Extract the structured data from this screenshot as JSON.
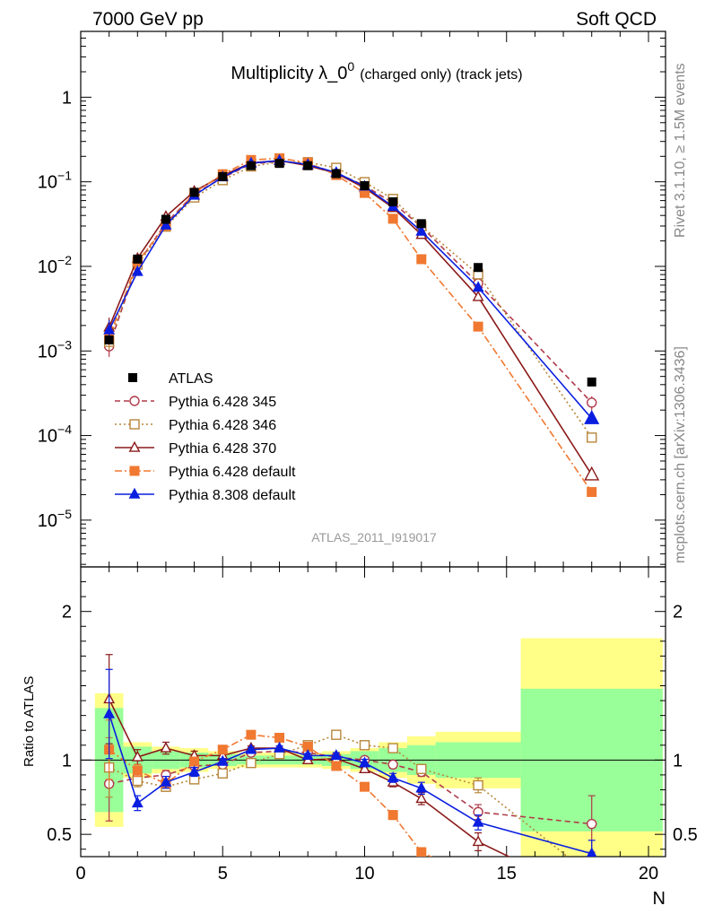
{
  "header": {
    "left": "7000 GeV pp",
    "right": "Soft QCD"
  },
  "side_labels": {
    "rivet": "Rivet 3.1.10, ≥ 1.5M events",
    "mcplots": "mcplots.cern.ch [arXiv:1306.3436]"
  },
  "chart_data": {
    "type": "scatter",
    "title_main": "Multiplicity λ_0",
    "title_sup": "0",
    "title_suffix": "(charged only) (track jets)",
    "watermark": "ATLAS_2011_I919017",
    "xlabel": "N",
    "ratio_ylabel": "Ratio to ATLAS",
    "xlim": [
      0,
      20.6
    ],
    "ylim_main": [
      2.8e-06,
      6
    ],
    "yscale_main": "log",
    "ylim_ratio": [
      0.35,
      2.3
    ],
    "x_ticks": [
      "0",
      "5",
      "10",
      "15",
      "20"
    ],
    "y_ticks_main": [
      {
        "base": "10",
        "exp": "−5"
      },
      {
        "base": "10",
        "exp": "−4"
      },
      {
        "base": "10",
        "exp": "−3"
      },
      {
        "base": "10",
        "exp": "−2"
      },
      {
        "base": "10",
        "exp": "−1"
      },
      {
        "base": "1",
        "exp": ""
      }
    ],
    "y_ticks_ratio": [
      "0.5",
      "1",
      "2"
    ],
    "legend_position": "middle-left",
    "data": {
      "name": "ATLAS",
      "x": [
        1,
        2,
        3,
        4,
        5,
        6,
        7,
        8,
        9,
        10,
        11,
        12,
        14,
        18
      ],
      "y": [
        0.00135,
        0.0122,
        0.036,
        0.075,
        0.115,
        0.155,
        0.165,
        0.155,
        0.125,
        0.09,
        0.058,
        0.032,
        0.0097,
        0.00043
      ]
    },
    "band_edges": [
      0.5,
      1.5,
      2.5,
      3.5,
      4.5,
      5.5,
      6.5,
      7.5,
      8.5,
      9.5,
      10.5,
      11.5,
      12.5,
      15.5,
      20.5
    ],
    "band_inner": [
      0.35,
      0.09,
      0.06,
      0.05,
      0.04,
      0.03,
      0.03,
      0.03,
      0.04,
      0.06,
      0.08,
      0.1,
      0.12,
      0.48
    ],
    "band_outer": [
      0.45,
      0.12,
      0.09,
      0.08,
      0.06,
      0.05,
      0.05,
      0.05,
      0.06,
      0.08,
      0.12,
      0.16,
      0.19,
      0.82
    ],
    "series": [
      {
        "name": "Pythia 6.428 345",
        "color": "#b03a4a",
        "marker": "circle-open",
        "line": "dashed",
        "x": [
          1,
          2,
          3,
          4,
          5,
          6,
          7,
          8,
          9,
          10,
          11,
          12,
          14,
          18
        ],
        "ratio": [
          0.84,
          0.88,
          0.9,
          0.96,
          0.97,
          1.05,
          1.06,
          1.05,
          1.02,
          1.0,
          0.97,
          0.92,
          0.65,
          0.57
        ],
        "err": [
          0.25,
          0.04,
          0.03,
          0.02,
          0.02,
          0.015,
          0.015,
          0.015,
          0.02,
          0.02,
          0.025,
          0.03,
          0.05,
          0.19
        ]
      },
      {
        "name": "Pythia 6.428 346",
        "color": "#b8863b",
        "marker": "square-open",
        "line": "dotted",
        "x": [
          1,
          2,
          3,
          4,
          5,
          6,
          7,
          8,
          9,
          10,
          11,
          12,
          14,
          18
        ],
        "ratio": [
          0.95,
          0.86,
          0.82,
          0.87,
          0.91,
          0.98,
          1.04,
          1.1,
          1.17,
          1.1,
          1.08,
          0.94,
          0.83,
          0.22
        ],
        "err": [
          0.2,
          0.04,
          0.03,
          0.02,
          0.02,
          0.015,
          0.015,
          0.015,
          0.02,
          0.02,
          0.025,
          0.03,
          0.05,
          0.1
        ]
      },
      {
        "name": "Pythia 6.428 370",
        "color": "#8b1a1a",
        "marker": "triangle-open",
        "line": "solid",
        "x": [
          1,
          2,
          3,
          4,
          5,
          6,
          7,
          8,
          9,
          10,
          11,
          12,
          14,
          18
        ],
        "ratio": [
          1.41,
          1.02,
          1.08,
          1.03,
          1.03,
          1.08,
          1.08,
          1.0,
          1.01,
          0.94,
          0.85,
          0.74,
          0.45,
          0.08
        ],
        "err": [
          0.3,
          0.05,
          0.04,
          0.03,
          0.02,
          0.015,
          0.015,
          0.015,
          0.02,
          0.025,
          0.03,
          0.04,
          0.06,
          0.05
        ]
      },
      {
        "name": "Pythia 6.428 default",
        "color": "#f07830",
        "marker": "square-filled",
        "line": "dashdot",
        "x": [
          1,
          2,
          3,
          4,
          5,
          6,
          7,
          8,
          9,
          10,
          11,
          12,
          14,
          18
        ],
        "ratio": [
          1.07,
          0.93,
          0.84,
          0.99,
          1.07,
          1.17,
          1.15,
          1.09,
          0.96,
          0.82,
          0.63,
          0.38,
          0.2,
          0.05
        ],
        "err": [
          0.2,
          0.04,
          0.03,
          0.02,
          0.02,
          0.015,
          0.015,
          0.015,
          0.02,
          0.025,
          0.03,
          0.03,
          0.03,
          0.03
        ]
      },
      {
        "name": "Pythia 8.308 default",
        "color": "#0a1ee0",
        "marker": "triangle-filled",
        "line": "solid",
        "x": [
          1,
          2,
          3,
          4,
          5,
          6,
          7,
          8,
          9,
          10,
          11,
          12,
          14,
          18
        ],
        "ratio": [
          1.31,
          0.71,
          0.85,
          0.92,
          0.99,
          1.07,
          1.08,
          1.03,
          1.03,
          0.98,
          0.88,
          0.81,
          0.58,
          0.37
        ],
        "err": [
          0.3,
          0.05,
          0.04,
          0.03,
          0.02,
          0.015,
          0.015,
          0.015,
          0.02,
          0.025,
          0.03,
          0.04,
          0.05,
          0.09
        ]
      }
    ]
  }
}
